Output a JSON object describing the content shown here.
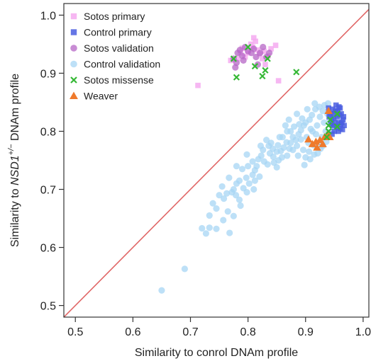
{
  "chart_data": {
    "type": "scatter",
    "xlabel": "Similarity to conrol DNAm profile",
    "ylabel_prefix": "Similarity to ",
    "ylabel_gene": "NSD1",
    "ylabel_sup": "+/−",
    "ylabel_suffix": " DNAm profile",
    "xlim": [
      0.48,
      1.01
    ],
    "ylim": [
      0.48,
      1.02
    ],
    "x_ticks": [
      {
        "value": 0.5,
        "label": "0.5"
      },
      {
        "value": 0.6,
        "label": "0.6"
      },
      {
        "value": 0.7,
        "label": "0.7"
      },
      {
        "value": 0.8,
        "label": "0.8"
      },
      {
        "value": 0.9,
        "label": "0.9"
      },
      {
        "value": 1.0,
        "label": "1.0"
      }
    ],
    "y_ticks": [
      {
        "value": 0.5,
        "label": "0.5"
      },
      {
        "value": 0.6,
        "label": "0.6"
      },
      {
        "value": 0.7,
        "label": "0.7"
      },
      {
        "value": 0.8,
        "label": "0.8"
      },
      {
        "value": 0.9,
        "label": "0.9"
      },
      {
        "value": 1.0,
        "label": "1.0"
      }
    ],
    "diagonal": {
      "color": "#e06666"
    },
    "legend_position": "top-left",
    "series": [
      {
        "name": "Sotos primary",
        "marker": "square",
        "color": "#f4aaf0",
        "points": [
          [
            0.713,
            0.879
          ],
          [
            0.782,
            0.925
          ],
          [
            0.787,
            0.935
          ],
          [
            0.79,
            0.943
          ],
          [
            0.795,
            0.928
          ],
          [
            0.8,
            0.935
          ],
          [
            0.805,
            0.95
          ],
          [
            0.81,
            0.961
          ],
          [
            0.813,
            0.955
          ],
          [
            0.817,
            0.94
          ],
          [
            0.82,
            0.933
          ],
          [
            0.825,
            0.925
          ],
          [
            0.83,
            0.915
          ],
          [
            0.835,
            0.93
          ],
          [
            0.84,
            0.942
          ],
          [
            0.848,
            0.948
          ],
          [
            0.853,
            0.887
          ],
          [
            0.77,
            0.922
          ],
          [
            0.808,
            0.945
          ],
          [
            0.828,
            0.938
          ]
        ]
      },
      {
        "name": "Control primary",
        "marker": "square",
        "color": "#4a5ee0",
        "points": [
          [
            0.94,
            0.84
          ],
          [
            0.943,
            0.83
          ],
          [
            0.945,
            0.82
          ],
          [
            0.948,
            0.81
          ],
          [
            0.95,
            0.8
          ],
          [
            0.952,
            0.835
          ],
          [
            0.955,
            0.825
          ],
          [
            0.958,
            0.815
          ],
          [
            0.96,
            0.805
          ],
          [
            0.962,
            0.83
          ],
          [
            0.965,
            0.82
          ],
          [
            0.967,
            0.81
          ],
          [
            0.946,
            0.795
          ],
          [
            0.95,
            0.83
          ],
          [
            0.953,
            0.845
          ],
          [
            0.957,
            0.8
          ],
          [
            0.96,
            0.84
          ],
          [
            0.963,
            0.815
          ],
          [
            0.966,
            0.825
          ],
          [
            0.944,
            0.812
          ],
          [
            0.949,
            0.822
          ],
          [
            0.954,
            0.808
          ],
          [
            0.959,
            0.828
          ],
          [
            0.941,
            0.825
          ],
          [
            0.947,
            0.838
          ],
          [
            0.956,
            0.835
          ],
          [
            0.961,
            0.812
          ],
          [
            0.964,
            0.803
          ],
          [
            0.951,
            0.815
          ],
          [
            0.958,
            0.842
          ]
        ]
      },
      {
        "name": "Sotos validation",
        "marker": "circle",
        "color": "#b565c6",
        "points": [
          [
            0.775,
            0.925
          ],
          [
            0.778,
            0.91
          ],
          [
            0.782,
            0.935
          ],
          [
            0.786,
            0.94
          ],
          [
            0.79,
            0.93
          ],
          [
            0.795,
            0.945
          ],
          [
            0.8,
            0.938
          ],
          [
            0.806,
            0.935
          ],
          [
            0.81,
            0.942
          ],
          [
            0.814,
            0.928
          ],
          [
            0.817,
            0.915
          ],
          [
            0.821,
            0.935
          ],
          [
            0.826,
            0.945
          ],
          [
            0.832,
            0.928
          ],
          [
            0.837,
            0.935
          ],
          [
            0.78,
            0.918
          ],
          [
            0.792,
            0.922
          ]
        ]
      },
      {
        "name": "Control validation",
        "marker": "circle",
        "color": "#a7d6f4",
        "points": [
          [
            0.65,
            0.526
          ],
          [
            0.69,
            0.563
          ],
          [
            0.72,
            0.633
          ],
          [
            0.727,
            0.624
          ],
          [
            0.733,
            0.634
          ],
          [
            0.745,
            0.632
          ],
          [
            0.757,
            0.647
          ],
          [
            0.768,
            0.625
          ],
          [
            0.775,
            0.654
          ],
          [
            0.745,
            0.667
          ],
          [
            0.758,
            0.684
          ],
          [
            0.763,
            0.693
          ],
          [
            0.772,
            0.695
          ],
          [
            0.779,
            0.69
          ],
          [
            0.785,
            0.682
          ],
          [
            0.787,
            0.672
          ],
          [
            0.792,
            0.702
          ],
          [
            0.798,
            0.695
          ],
          [
            0.79,
            0.735
          ],
          [
            0.785,
            0.715
          ],
          [
            0.797,
            0.72
          ],
          [
            0.802,
            0.71
          ],
          [
            0.808,
            0.725
          ],
          [
            0.812,
            0.715
          ],
          [
            0.815,
            0.74
          ],
          [
            0.808,
            0.748
          ],
          [
            0.818,
            0.752
          ],
          [
            0.823,
            0.758
          ],
          [
            0.828,
            0.748
          ],
          [
            0.834,
            0.743
          ],
          [
            0.845,
            0.746
          ],
          [
            0.85,
            0.738
          ],
          [
            0.843,
            0.77
          ],
          [
            0.838,
            0.762
          ],
          [
            0.852,
            0.776
          ],
          [
            0.857,
            0.766
          ],
          [
            0.853,
            0.75
          ],
          [
            0.862,
            0.772
          ],
          [
            0.867,
            0.781
          ],
          [
            0.872,
            0.77
          ],
          [
            0.868,
            0.758
          ],
          [
            0.878,
            0.79
          ],
          [
            0.874,
            0.8
          ],
          [
            0.883,
            0.785
          ],
          [
            0.888,
            0.795
          ],
          [
            0.885,
            0.775
          ],
          [
            0.892,
            0.802
          ],
          [
            0.897,
            0.81
          ],
          [
            0.902,
            0.79
          ],
          [
            0.907,
            0.82
          ],
          [
            0.912,
            0.8
          ],
          [
            0.905,
            0.78
          ],
          [
            0.915,
            0.76
          ],
          [
            0.908,
            0.752
          ],
          [
            0.896,
            0.768
          ],
          [
            0.9,
            0.755
          ],
          [
            0.887,
            0.758
          ],
          [
            0.878,
            0.768
          ],
          [
            0.898,
            0.742
          ],
          [
            0.92,
            0.81
          ],
          [
            0.925,
            0.825
          ],
          [
            0.918,
            0.795
          ],
          [
            0.928,
            0.79
          ],
          [
            0.932,
            0.815
          ],
          [
            0.938,
            0.83
          ],
          [
            0.935,
            0.8
          ],
          [
            0.942,
            0.82
          ],
          [
            0.93,
            0.835
          ],
          [
            0.922,
            0.78
          ],
          [
            0.926,
            0.77
          ],
          [
            0.914,
            0.776
          ],
          [
            0.9,
            0.815
          ],
          [
            0.894,
            0.822
          ],
          [
            0.911,
            0.828
          ],
          [
            0.917,
            0.838
          ],
          [
            0.924,
            0.842
          ],
          [
            0.933,
            0.845
          ],
          [
            0.939,
            0.848
          ],
          [
            0.86,
            0.79
          ],
          [
            0.868,
            0.8
          ],
          [
            0.88,
            0.808
          ],
          [
            0.874,
            0.78
          ],
          [
            0.892,
            0.786
          ],
          [
            0.906,
            0.765
          ],
          [
            0.844,
            0.756
          ],
          [
            0.836,
            0.775
          ],
          [
            0.826,
            0.768
          ],
          [
            0.812,
            0.733
          ],
          [
            0.82,
            0.722
          ],
          [
            0.8,
            0.74
          ],
          [
            0.81,
            0.7
          ],
          [
            0.78,
            0.71
          ],
          [
            0.767,
            0.72
          ],
          [
            0.775,
            0.7
          ],
          [
            0.755,
            0.705
          ],
          [
            0.765,
            0.662
          ],
          [
            0.733,
            0.655
          ],
          [
            0.75,
            0.69
          ],
          [
            0.739,
            0.676
          ],
          [
            0.78,
            0.74
          ],
          [
            0.798,
            0.76
          ],
          [
            0.855,
            0.79
          ],
          [
            0.865,
            0.81
          ],
          [
            0.889,
            0.812
          ],
          [
            0.903,
            0.838
          ],
          [
            0.885,
            0.83
          ],
          [
            0.871,
            0.82
          ],
          [
            0.916,
            0.848
          ],
          [
            0.909,
            0.804
          ],
          [
            0.921,
            0.762
          ],
          [
            0.93,
            0.775
          ],
          [
            0.94,
            0.79
          ],
          [
            0.936,
            0.782
          ],
          [
            0.945,
            0.8
          ],
          [
            0.946,
            0.812
          ],
          [
            0.948,
            0.825
          ],
          [
            0.85,
            0.765
          ],
          [
            0.859,
            0.755
          ],
          [
            0.84,
            0.78
          ],
          [
            0.832,
            0.785
          ],
          [
            0.822,
            0.775
          ]
        ]
      },
      {
        "name": "Sotos missense",
        "marker": "x",
        "color": "#35b835",
        "points": [
          [
            0.775,
            0.925
          ],
          [
            0.8,
            0.945
          ],
          [
            0.78,
            0.893
          ],
          [
            0.812,
            0.912
          ],
          [
            0.825,
            0.895
          ],
          [
            0.83,
            0.905
          ],
          [
            0.834,
            0.925
          ],
          [
            0.884,
            0.902
          ],
          [
            0.94,
            0.81
          ],
          [
            0.94,
            0.8
          ],
          [
            0.943,
            0.82
          ],
          [
            0.955,
            0.83
          ],
          [
            0.955,
            0.808
          ],
          [
            0.937,
            0.79
          ]
        ]
      },
      {
        "name": "Weaver",
        "marker": "triangle",
        "color": "#ef7a2c",
        "points": [
          [
            0.905,
            0.786
          ],
          [
            0.912,
            0.778
          ],
          [
            0.918,
            0.782
          ],
          [
            0.92,
            0.772
          ],
          [
            0.925,
            0.785
          ],
          [
            0.93,
            0.778
          ],
          [
            0.933,
            0.79
          ],
          [
            0.938,
            0.795
          ],
          [
            0.94,
            0.835
          ],
          [
            0.942,
            0.79
          ]
        ]
      }
    ]
  }
}
